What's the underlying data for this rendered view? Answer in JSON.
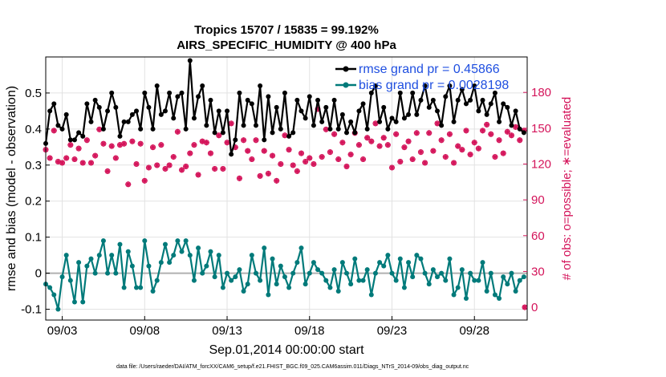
{
  "colors": {
    "rmse": "#000000",
    "bias": "#007a7a",
    "obs": "#d4145a",
    "legend_text": "#1f4fe0",
    "grid": "#e2e2e2",
    "zero_line": "#b0b0b0"
  },
  "chart_data": {
    "type": "line",
    "title": "Tropics 15707 / 15835 = 99.192%",
    "subtitle": "AIRS_SPECIFIC_HUMIDITY @ 400 hPa",
    "xlabel": "Sep.01,2014 00:00:00 start",
    "ylabel": "rmse and bias (model - observation)",
    "y2label": "# of obs: o=possible; ∗=evaluated",
    "xlim": [
      2.0,
      31.2
    ],
    "ylim": [
      -0.13,
      0.6
    ],
    "y2lim": [
      -10.7,
      209.7
    ],
    "x_ticks": [
      3,
      8,
      13,
      18,
      23,
      28
    ],
    "x_tick_labels": [
      "09/03",
      "09/08",
      "09/13",
      "09/18",
      "09/23",
      "09/28"
    ],
    "y_ticks": [
      -0.1,
      0,
      0.1,
      0.2,
      0.3,
      0.4,
      0.5
    ],
    "y_tick_labels": [
      "-0.1",
      "0",
      "0.1",
      "0.2",
      "0.3",
      "0.4",
      "0.5"
    ],
    "y2_ticks": [
      0,
      30,
      60,
      90,
      120,
      150,
      180
    ],
    "y2_tick_labels": [
      "0",
      "30",
      "60",
      "90",
      "120",
      "150",
      "180"
    ],
    "grid": true,
    "legend_position": "top-right",
    "legend": [
      "rmse grand pr = 0.45866",
      "bias grand pr = 0.0028198"
    ],
    "x": [
      2.0,
      2.25,
      2.5,
      2.75,
      3.0,
      3.25,
      3.5,
      3.75,
      4.0,
      4.25,
      4.5,
      4.75,
      5.0,
      5.25,
      5.5,
      5.75,
      6.0,
      6.25,
      6.5,
      6.75,
      7.0,
      7.25,
      7.5,
      7.75,
      8.0,
      8.25,
      8.5,
      8.75,
      9.0,
      9.25,
      9.5,
      9.75,
      10.0,
      10.25,
      10.5,
      10.75,
      11.0,
      11.25,
      11.5,
      11.75,
      12.0,
      12.25,
      12.5,
      12.75,
      13.0,
      13.25,
      13.5,
      13.75,
      14.0,
      14.25,
      14.5,
      14.75,
      15.0,
      15.25,
      15.5,
      15.75,
      16.0,
      16.25,
      16.5,
      16.75,
      17.0,
      17.25,
      17.5,
      17.75,
      18.0,
      18.25,
      18.5,
      18.75,
      19.0,
      19.25,
      19.5,
      19.75,
      20.0,
      20.25,
      20.5,
      20.75,
      21.0,
      21.25,
      21.5,
      21.75,
      22.0,
      22.25,
      22.5,
      22.75,
      23.0,
      23.25,
      23.5,
      23.75,
      24.0,
      24.25,
      24.5,
      24.75,
      25.0,
      25.25,
      25.5,
      25.75,
      26.0,
      26.25,
      26.5,
      26.75,
      27.0,
      27.25,
      27.5,
      27.75,
      28.0,
      28.25,
      28.5,
      28.75,
      29.0,
      29.25,
      29.5,
      29.75,
      30.0,
      30.25,
      30.5,
      30.75,
      31.0
    ],
    "series": [
      {
        "name": "rmse",
        "axis": "left",
        "values": [
          0.36,
          0.45,
          0.47,
          0.41,
          0.4,
          0.44,
          0.37,
          0.37,
          0.39,
          0.38,
          0.47,
          0.42,
          0.48,
          0.46,
          0.4,
          0.45,
          0.5,
          0.46,
          0.38,
          0.42,
          0.42,
          0.44,
          0.45,
          0.4,
          0.5,
          0.46,
          0.4,
          0.52,
          0.44,
          0.45,
          0.5,
          0.43,
          0.49,
          0.5,
          0.4,
          0.59,
          0.43,
          0.49,
          0.52,
          0.41,
          0.48,
          0.39,
          0.45,
          0.39,
          0.45,
          0.33,
          0.37,
          0.5,
          0.41,
          0.48,
          0.47,
          0.41,
          0.52,
          0.37,
          0.49,
          0.39,
          0.46,
          0.4,
          0.5,
          0.38,
          0.39,
          0.48,
          0.45,
          0.43,
          0.49,
          0.41,
          0.48,
          0.42,
          0.46,
          0.4,
          0.48,
          0.4,
          0.44,
          0.39,
          0.42,
          0.39,
          0.45,
          0.47,
          0.4,
          0.5,
          0.52,
          0.42,
          0.46,
          0.4,
          0.43,
          0.42,
          0.5,
          0.43,
          0.44,
          0.5,
          0.44,
          0.48,
          0.52,
          0.46,
          0.48,
          0.45,
          0.41,
          0.49,
          0.52,
          0.42,
          0.48,
          0.51,
          0.47,
          0.48,
          0.52,
          0.45,
          0.48,
          0.44,
          0.47,
          0.5,
          0.42,
          0.47,
          0.46,
          0.41,
          0.45,
          0.4,
          0.39
        ]
      },
      {
        "name": "bias",
        "axis": "left",
        "values": [
          -0.03,
          -0.04,
          -0.06,
          -0.1,
          -0.01,
          0.05,
          -0.02,
          -0.08,
          0.03,
          -0.08,
          0.02,
          0.04,
          0.0,
          0.05,
          0.09,
          0.0,
          0.05,
          0.0,
          0.08,
          -0.04,
          0.06,
          0.02,
          -0.04,
          -0.04,
          0.09,
          0.02,
          -0.05,
          -0.02,
          0.03,
          0.08,
          0.03,
          0.05,
          0.09,
          0.06,
          0.09,
          0.05,
          -0.02,
          0.07,
          0.0,
          0.02,
          0.06,
          -0.01,
          0.05,
          -0.04,
          0.0,
          -0.02,
          -0.01,
          0.01,
          -0.05,
          -0.03,
          0.05,
          0.0,
          -0.02,
          0.07,
          -0.06,
          0.04,
          -0.03,
          0.02,
          -0.01,
          -0.04,
          0.0,
          0.03,
          0.07,
          -0.03,
          0.0,
          0.03,
          0.01,
          0.0,
          -0.02,
          -0.04,
          0.01,
          -0.05,
          0.03,
          0.0,
          -0.03,
          0.04,
          -0.02,
          -0.02,
          0.01,
          -0.06,
          0.0,
          0.03,
          0.02,
          0.05,
          0.0,
          -0.02,
          0.04,
          -0.04,
          0.03,
          -0.01,
          0.05,
          0.04,
          0.0,
          -0.03,
          0.01,
          -0.01,
          0.0,
          -0.02,
          0.04,
          -0.06,
          -0.04,
          0.01,
          -0.07,
          0.0,
          -0.02,
          -0.02,
          0.03,
          -0.05,
          0.0,
          -0.06,
          -0.07,
          -0.01,
          -0.03,
          0.0,
          -0.05,
          -0.02,
          -0.01
        ]
      },
      {
        "name": "obs_evaluated",
        "axis": "right",
        "values": [
          132,
          125,
          148,
          122,
          121,
          125,
          136,
          124,
          133,
          121,
          140,
          121,
          127,
          149,
          137,
          114,
          135,
          125,
          136,
          137,
          103,
          139,
          120,
          137,
          106,
          117,
          134,
          119,
          136,
          116,
          119,
          126,
          147,
          115,
          118,
          129,
          136,
          111,
          139,
          138,
          129,
          116,
          144,
          116,
          138,
          154,
          134,
          108,
          140,
          131,
          124,
          140,
          110,
          131,
          112,
          127,
          106,
          120,
          144,
          132,
          119,
          114,
          129,
          122,
          125,
          120,
          166,
          126,
          149,
          130,
          145,
          124,
          138,
          118,
          128,
          146,
          136,
          124,
          142,
          139,
          154,
          135,
          142,
          136,
          117,
          145,
          122,
          134,
          139,
          124,
          146,
          130,
          121,
          146,
          131,
          154,
          140,
          126,
          145,
          121,
          135,
          132,
          148,
          128,
          138,
          133,
          148,
          153,
          145,
          126,
          140,
          129,
          147,
          144,
          151,
          140,
          148
        ]
      },
      {
        "name": "obs_possible",
        "axis": "right",
        "values": [
          132,
          125,
          148,
          122,
          121,
          125,
          136,
          124,
          133,
          121,
          140,
          121,
          127,
          149,
          137,
          114,
          135,
          125,
          136,
          137,
          103,
          139,
          120,
          137,
          106,
          117,
          134,
          119,
          136,
          116,
          119,
          126,
          147,
          115,
          118,
          129,
          136,
          111,
          139,
          138,
          129,
          116,
          144,
          116,
          138,
          154,
          134,
          108,
          140,
          131,
          124,
          140,
          110,
          131,
          112,
          127,
          106,
          120,
          144,
          132,
          119,
          114,
          129,
          122,
          125,
          120,
          166,
          126,
          149,
          130,
          145,
          124,
          138,
          118,
          128,
          146,
          136,
          124,
          142,
          139,
          154,
          135,
          142,
          136,
          117,
          145,
          122,
          134,
          139,
          124,
          146,
          130,
          121,
          146,
          131,
          154,
          140,
          126,
          145,
          121,
          135,
          132,
          148,
          128,
          138,
          133,
          148,
          153,
          145,
          126,
          140,
          129,
          147,
          144,
          151,
          140,
          148
        ]
      }
    ],
    "extra_points": [
      {
        "name": "obs_final_drop",
        "x": 31.2,
        "y2": 0
      }
    ],
    "footnote": "data file: /Users/raeder/DAI/ATM_forcXX/CAM6_setup/f.e21.FHIST_BGC.f09_025.CAM6assim.011/Diags_NTrS_2014-09/obs_diag_output.nc"
  }
}
